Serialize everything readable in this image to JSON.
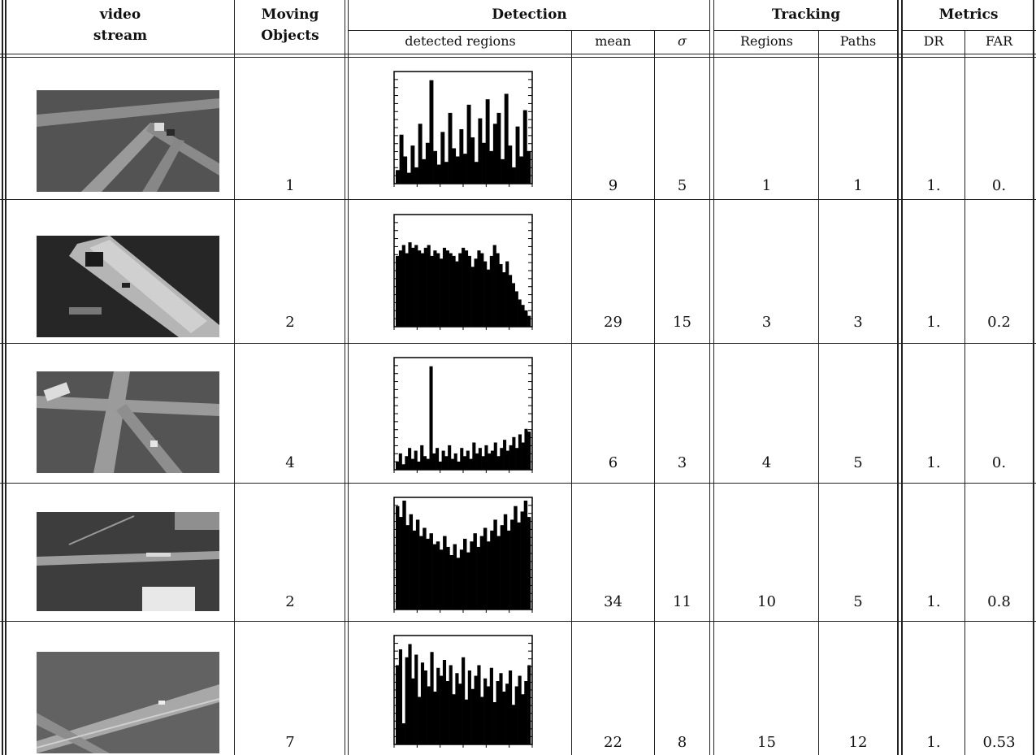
{
  "headers": {
    "video_stream": [
      "video",
      "stream"
    ],
    "moving_objects": [
      "Moving",
      "Objects"
    ],
    "detection": "Detection",
    "tracking": "Tracking",
    "metrics": "Metrics",
    "detected_regions": "detected regions",
    "mean": "mean",
    "sigma": "σ",
    "regions": "Regions",
    "paths": "Paths",
    "dr": "DR",
    "far": "FAR"
  },
  "rows": [
    {
      "moving": "1",
      "mean": "9",
      "sigma": "5",
      "regions": "1",
      "paths": "1",
      "dr": "1.",
      "far": "0.",
      "hist": [
        5,
        18,
        10,
        4,
        14,
        6,
        22,
        9,
        15,
        38,
        12,
        7,
        19,
        8,
        26,
        13,
        10,
        20,
        11,
        29,
        17,
        8,
        24,
        15,
        31,
        12,
        22,
        26,
        9,
        33,
        14,
        6,
        21,
        10,
        27,
        12
      ],
      "scene": "interchange"
    },
    {
      "moving": "2",
      "mean": "29",
      "sigma": "15",
      "regions": "3",
      "paths": "3",
      "dr": "1.",
      "far": "0.2",
      "hist": [
        26,
        28,
        30,
        27,
        31,
        29,
        30,
        28,
        27,
        29,
        30,
        26,
        28,
        27,
        25,
        29,
        28,
        27,
        26,
        24,
        27,
        29,
        28,
        26,
        22,
        25,
        28,
        27,
        24,
        21,
        26,
        30,
        27,
        23,
        20,
        24,
        19,
        16,
        13,
        10,
        8,
        6,
        4
      ],
      "scene": "bridge-dark"
    },
    {
      "moving": "4",
      "mean": "6",
      "sigma": "3",
      "regions": "4",
      "paths": "5",
      "dr": "1.",
      "far": "0.",
      "hist": [
        3,
        6,
        2,
        5,
        8,
        4,
        7,
        3,
        9,
        5,
        4,
        38,
        6,
        8,
        3,
        7,
        5,
        9,
        4,
        6,
        3,
        8,
        5,
        7,
        4,
        10,
        6,
        8,
        5,
        9,
        6,
        7,
        10,
        5,
        8,
        11,
        7,
        9,
        12,
        8,
        13,
        10,
        15,
        14
      ],
      "scene": "intersection"
    },
    {
      "moving": "2",
      "mean": "34",
      "sigma": "11",
      "regions": "10",
      "paths": "5",
      "dr": "1.",
      "far": "0.8",
      "hist": [
        38,
        34,
        40,
        31,
        35,
        29,
        33,
        27,
        30,
        26,
        28,
        24,
        25,
        22,
        27,
        23,
        20,
        24,
        19,
        22,
        26,
        21,
        25,
        28,
        23,
        27,
        30,
        25,
        29,
        33,
        27,
        31,
        35,
        29,
        33,
        38,
        32,
        36,
        40,
        34
      ],
      "scene": "highway"
    },
    {
      "moving": "7",
      "mean": "22",
      "sigma": "8",
      "regions": "15",
      "paths": "12",
      "dr": "1.",
      "far": "0.53",
      "hist": [
        30,
        36,
        8,
        33,
        38,
        25,
        34,
        18,
        31,
        28,
        22,
        35,
        20,
        29,
        26,
        32,
        24,
        30,
        19,
        27,
        23,
        33,
        17,
        28,
        21,
        26,
        30,
        18,
        25,
        22,
        29,
        16,
        24,
        27,
        20,
        23,
        28,
        15,
        22,
        26,
        19,
        24,
        30
      ],
      "scene": "overpass"
    }
  ]
}
